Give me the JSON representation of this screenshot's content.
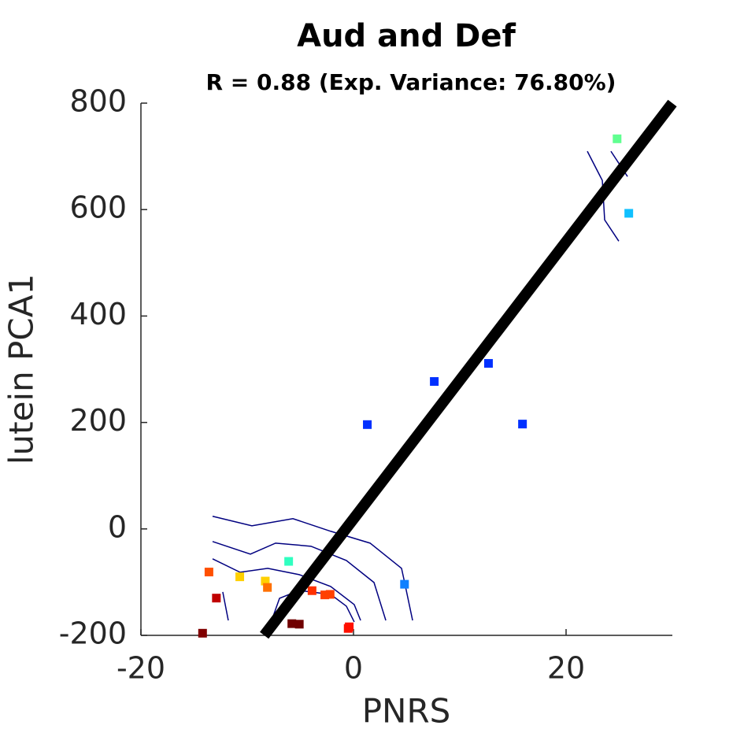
{
  "chart_data": {
    "type": "scatter",
    "title": "Aud and Def",
    "subtitle": "R = 0.88 (Exp. Variance: 76.80%)",
    "x_label": "PNRS",
    "y_label": "lutein PCA1",
    "xlim": [
      -20,
      30
    ],
    "ylim": [
      -200,
      800
    ],
    "xticks": [
      -20,
      0,
      20
    ],
    "yticks": [
      -200,
      0,
      200,
      400,
      600,
      800
    ],
    "x": [
      24.8,
      25.9,
      12.7,
      7.6,
      1.3,
      15.9,
      4.8,
      -6.1,
      -13.6,
      -10.7,
      -8.3,
      -8.1,
      -12.9,
      -14.2,
      -5.8,
      -5.1,
      -3.9,
      -2.7,
      -2.2,
      -0.4,
      -0.5
    ],
    "values": [
      733,
      593,
      311,
      277,
      196,
      197,
      -104,
      -61,
      -81,
      -90,
      -98,
      -110,
      -130,
      -196,
      -178,
      -179,
      -116,
      -124,
      -123,
      -184,
      -187
    ],
    "colors": [
      "#60ff90",
      "#10c0ff",
      "#0030ff",
      "#0030ff",
      "#0030ff",
      "#0030ff",
      "#1080ff",
      "#30ffc0",
      "#ff5000",
      "#ffd000",
      "#ffd000",
      "#ff7000",
      "#c00000",
      "#800000",
      "#700000",
      "#700000",
      "#ff3000",
      "#ff4000",
      "#ff4000",
      "#ff1000",
      "#ff1000"
    ],
    "fit": {
      "color": "#000000",
      "x": [
        -8.4,
        30
      ],
      "y": [
        -200,
        800
      ]
    },
    "contour_color": "#000080",
    "contours": [
      {
        "x": [
          -13.26,
          -9.56,
          -5.7,
          -2.15,
          1.56,
          4.52,
          4.81,
          5.56
        ],
        "y": [
          23.7,
          5.9,
          19.3,
          -4.4,
          -26.7,
          -74.1,
          -100.7,
          -171.9
        ]
      },
      {
        "x": [
          -13.26,
          -9.7,
          -7.33,
          -4.0,
          -0.67,
          1.93,
          3.04
        ],
        "y": [
          -23.7,
          -47.4,
          -26.7,
          -32.6,
          -59.3,
          -100.7,
          -171.9
        ]
      },
      {
        "x": [
          -13.26,
          -10.67,
          -8.07,
          -5.11,
          -2.15,
          0.07,
          0.67
        ],
        "y": [
          -56.3,
          -81.5,
          -74.1,
          -85.9,
          -108.1,
          -142.2,
          -171.9
        ]
      },
      {
        "x": [
          -12.3,
          -11.78
        ],
        "y": [
          -118.5,
          -171.9
        ]
      },
      {
        "x": [
          -7.7,
          -6.96,
          -5.11,
          -2.15,
          -0.67,
          0.07
        ],
        "y": [
          -171.9,
          -130.4,
          -115.6,
          -123.0,
          -145.2,
          -174.8
        ]
      },
      {
        "x": [
          22.0,
          23.41,
          23.63,
          24.96
        ],
        "y": [
          709.6,
          654.8,
          580.7,
          540.7
        ]
      },
      {
        "x": [
          24.22,
          25.78
        ],
        "y": [
          709.6,
          662.2
        ]
      }
    ]
  }
}
